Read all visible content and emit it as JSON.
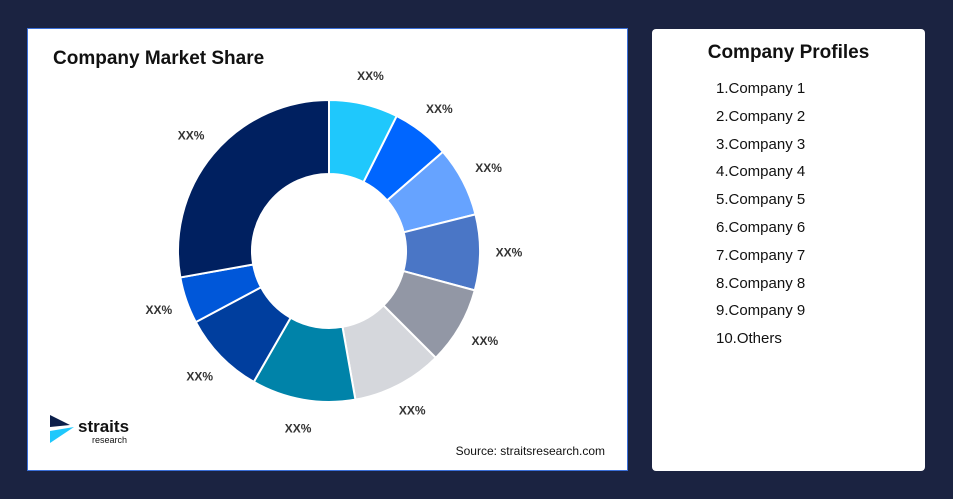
{
  "chart_data": {
    "type": "pie",
    "subtype": "donut",
    "title": "Company Market Share",
    "slices": [
      {
        "label": "XX%",
        "value": 7.4,
        "color": "#1fc8fc"
      },
      {
        "label": "XX%",
        "value": 6.2,
        "color": "#0066ff"
      },
      {
        "label": "XX%",
        "value": 7.5,
        "color": "#66a3ff"
      },
      {
        "label": "XX%",
        "value": 8.1,
        "color": "#4a76c6"
      },
      {
        "label": "XX%",
        "value": 8.3,
        "color": "#9297a5"
      },
      {
        "label": "XX%",
        "value": 9.7,
        "color": "#d5d7dc"
      },
      {
        "label": "XX%",
        "value": 11.1,
        "color": "#0083a9"
      },
      {
        "label": "XX%",
        "value": 8.9,
        "color": "#003e9e"
      },
      {
        "label": "XX%",
        "value": 5.0,
        "color": "#0057d9"
      },
      {
        "label": "XX%",
        "value": 27.8,
        "color": "#002060"
      }
    ]
  },
  "source": "Source: straitsresearch.com",
  "logo": {
    "name": "straits",
    "sub": "research"
  },
  "profiles": {
    "title": "Company Profiles",
    "items": [
      "1.Company 1",
      "2.Company 2",
      "3.Company 3",
      "4.Company 4",
      "5.Company 5",
      "6.Company 6",
      "7.Company 7",
      "8.Company 8",
      "9.Company 9",
      "10.Others"
    ]
  }
}
